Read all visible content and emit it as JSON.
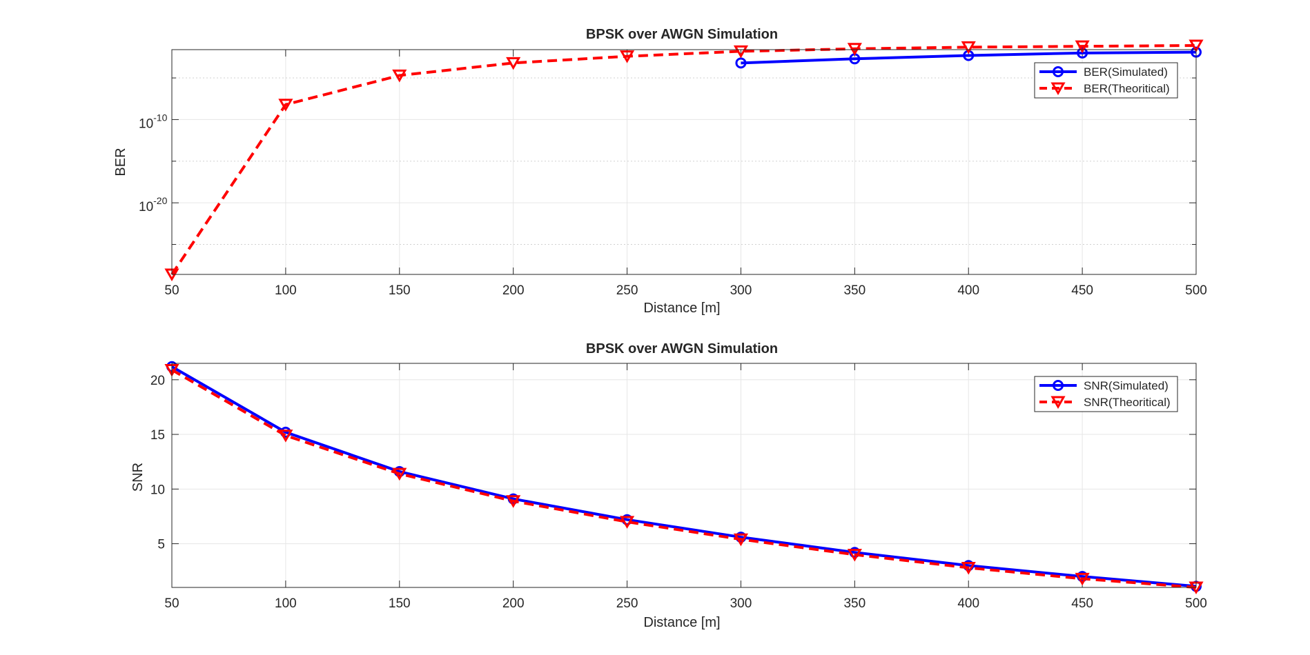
{
  "colors": {
    "simulated": "#0000ff",
    "theoretical": "#ff0000",
    "grid": "#e6e6e6",
    "axis": "#262626",
    "background": "#ffffff"
  },
  "chart_data": [
    {
      "type": "line",
      "title": "BPSK over AWGN Simulation",
      "xlabel": "Distance [m]",
      "ylabel": "BER",
      "xlim": [
        50,
        500
      ],
      "yscale": "log",
      "ylim_log10": [
        -28.6,
        -1.6
      ],
      "grid": true,
      "legend_position": "top-right",
      "x_ticks": [
        50,
        100,
        150,
        200,
        250,
        300,
        350,
        400,
        450,
        500
      ],
      "y_ticks": [
        {
          "base": "10",
          "exp": "-10",
          "log10": -10
        },
        {
          "base": "10",
          "exp": "-20",
          "log10": -20
        }
      ],
      "y_minor_log10": [
        -5,
        -15,
        -25
      ],
      "series": [
        {
          "name": "BER(Simulated)",
          "color": "#0000ff",
          "line": "solid",
          "marker": "circle",
          "x": [
            300,
            350,
            400,
            450,
            500
          ],
          "log10_y": [
            -3.2,
            -2.7,
            -2.3,
            -2.0,
            -1.9
          ]
        },
        {
          "name": "BER(Theoritical)",
          "color": "#ff0000",
          "line": "dashed",
          "marker": "triangle-down",
          "x": [
            50,
            100,
            150,
            200,
            250,
            300,
            350,
            400,
            450,
            500
          ],
          "log10_y": [
            -28.6,
            -8.2,
            -4.7,
            -3.2,
            -2.4,
            -1.8,
            -1.5,
            -1.3,
            -1.2,
            -1.1
          ]
        }
      ]
    },
    {
      "type": "line",
      "title": "BPSK over AWGN Simulation",
      "xlabel": "Distance [m]",
      "ylabel": "SNR",
      "xlim": [
        50,
        500
      ],
      "ylim": [
        1,
        21.5
      ],
      "grid": true,
      "legend_position": "top-right",
      "x_ticks": [
        50,
        100,
        150,
        200,
        250,
        300,
        350,
        400,
        450,
        500
      ],
      "y_ticks": [
        5,
        10,
        15,
        20
      ],
      "series": [
        {
          "name": "SNR(Simulated)",
          "color": "#0000ff",
          "line": "solid",
          "marker": "circle",
          "x": [
            50,
            100,
            150,
            200,
            250,
            300,
            350,
            400,
            450,
            500
          ],
          "y": [
            21.2,
            15.2,
            11.6,
            9.1,
            7.2,
            5.6,
            4.2,
            3.0,
            2.0,
            1.1
          ]
        },
        {
          "name": "SNR(Theoritical)",
          "color": "#ff0000",
          "line": "dashed",
          "marker": "triangle-down",
          "x": [
            50,
            100,
            150,
            200,
            250,
            300,
            350,
            400,
            450,
            500
          ],
          "y": [
            20.9,
            14.9,
            11.4,
            8.9,
            7.0,
            5.4,
            4.0,
            2.8,
            1.8,
            1.0
          ]
        }
      ]
    }
  ]
}
